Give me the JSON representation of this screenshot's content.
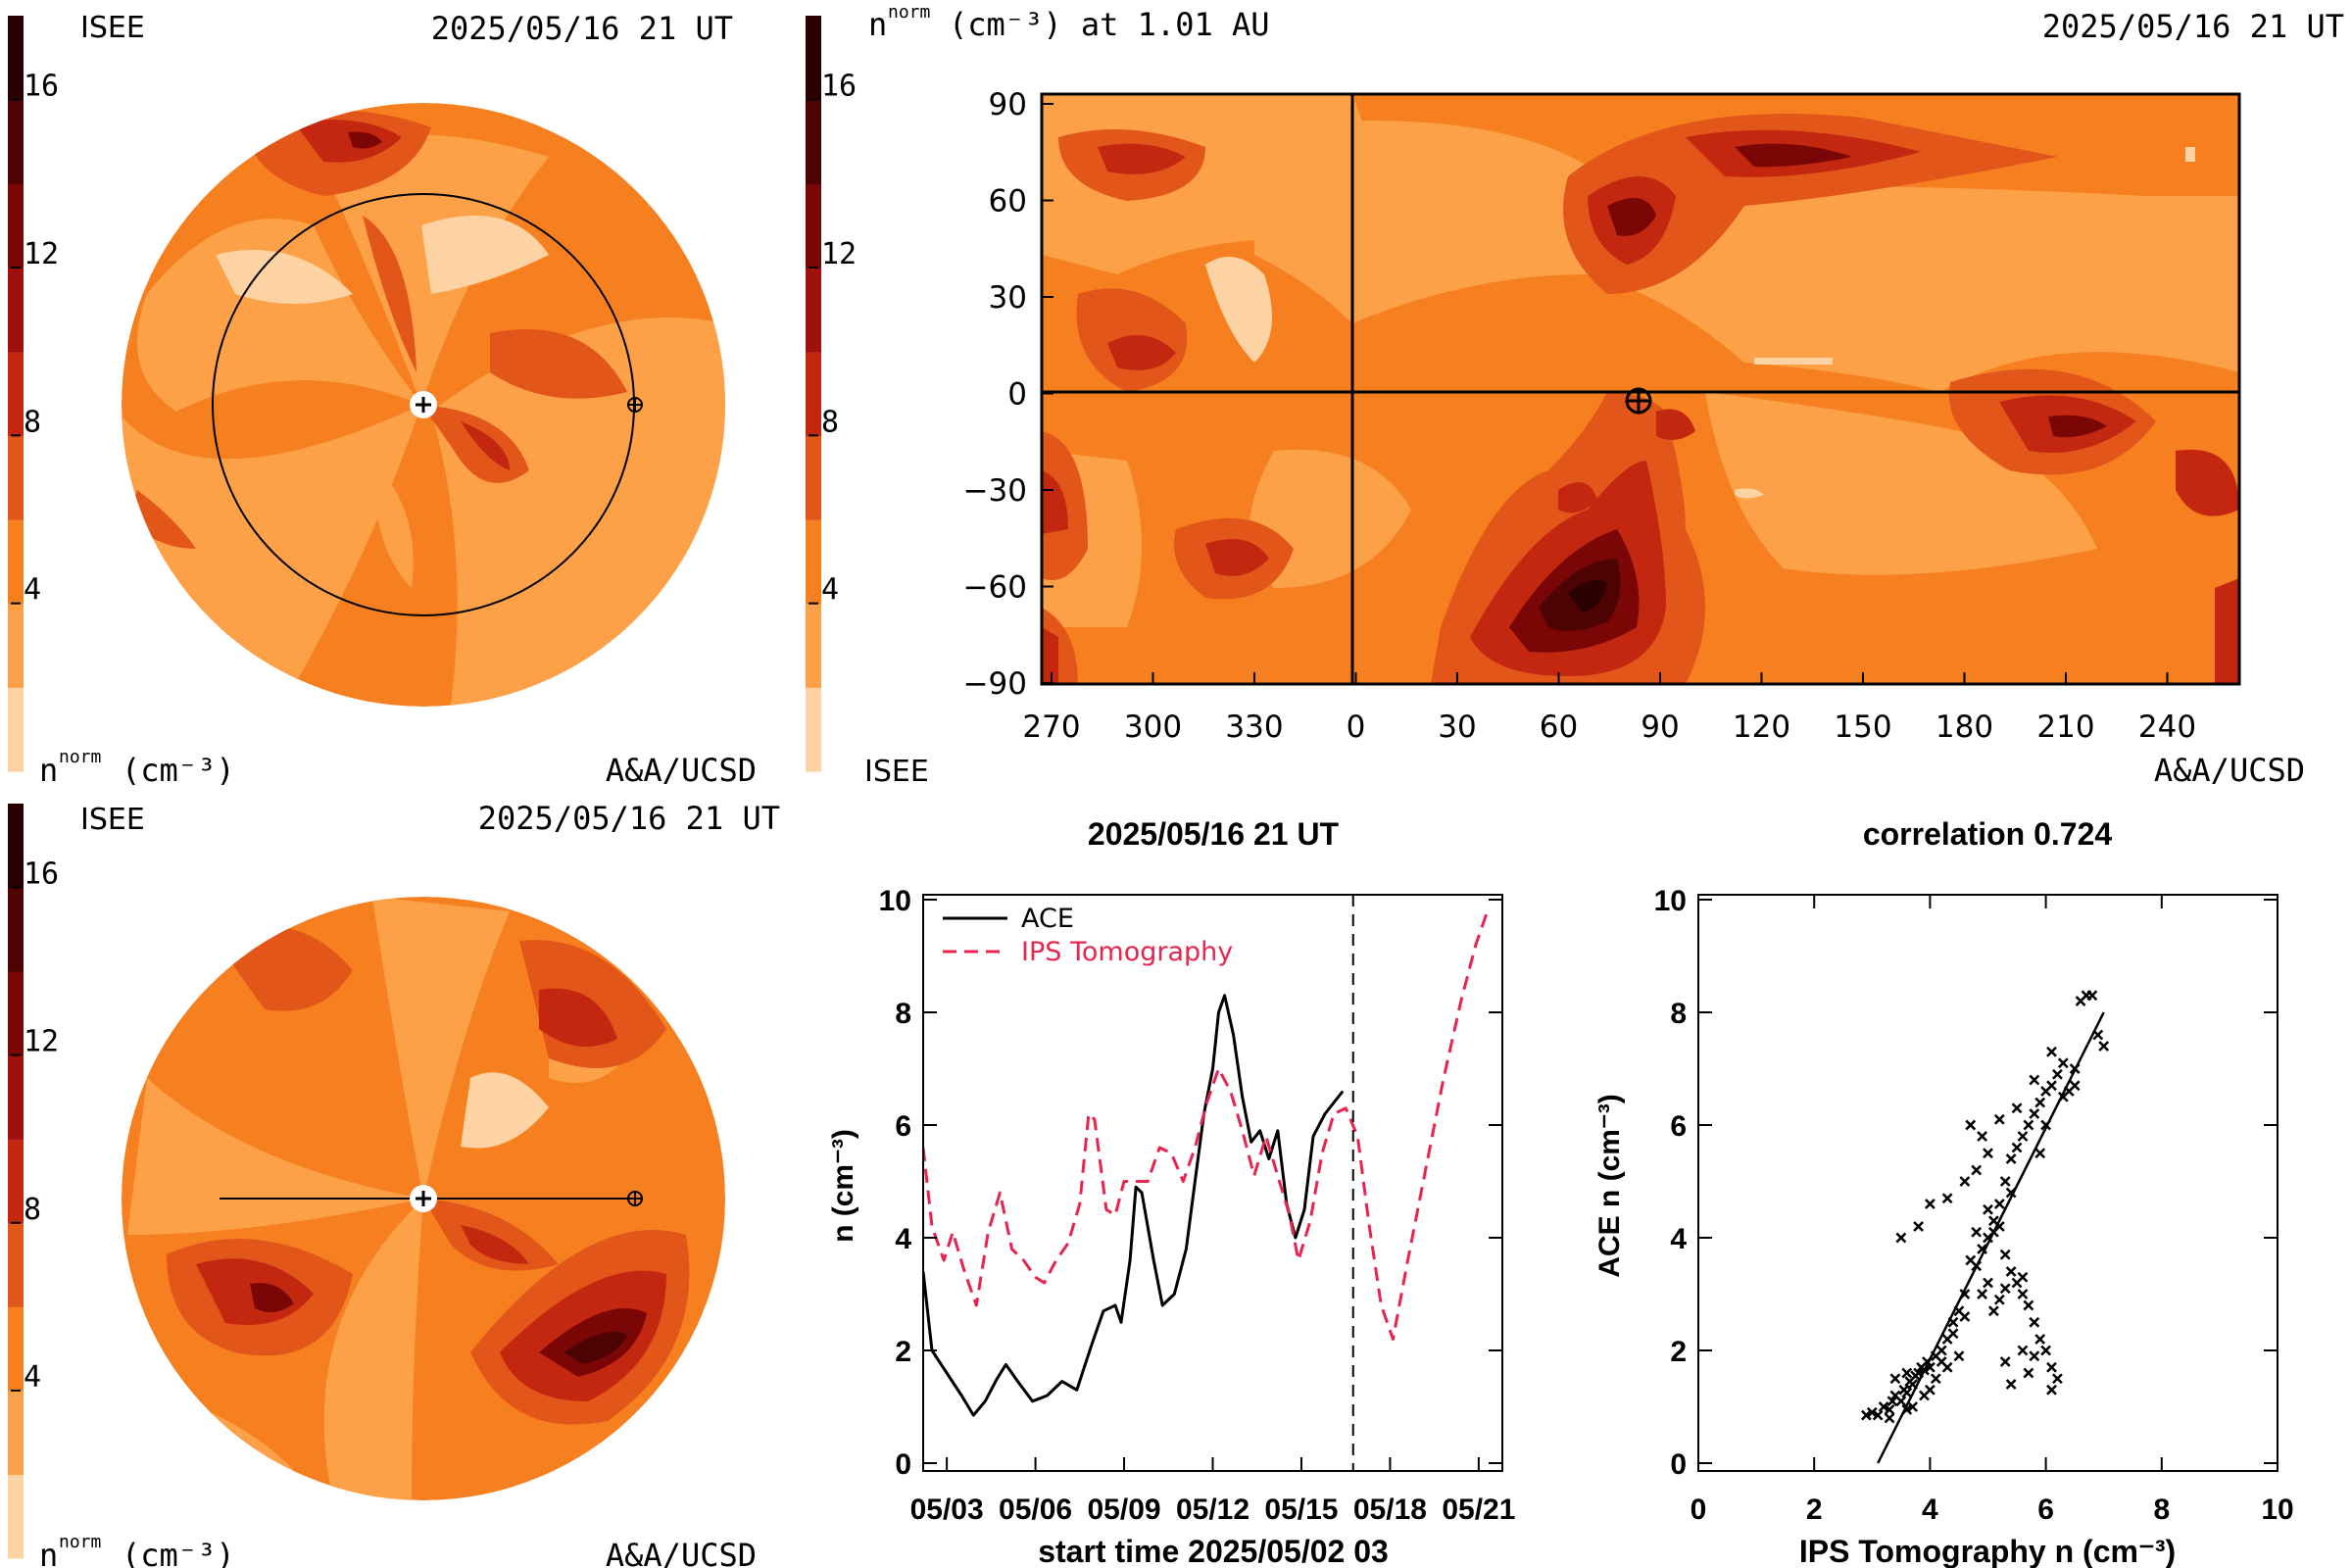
{
  "palette": [
    "#fdd3a4",
    "#fca148",
    "#f6801f",
    "#e2561a",
    "#c42710",
    "#a0100d",
    "#7a0706",
    "#4e0303",
    "#2a0000"
  ],
  "colorbar": {
    "ticks": [
      "4",
      "8",
      "12",
      "16"
    ],
    "unit_label": "(cm⁻³)",
    "n_label": "n",
    "n_sup": "norm"
  },
  "panel_topleft": {
    "source": "ISEE",
    "datetime": "2025/05/16 21 UT",
    "credit": "A&A/UCSD"
  },
  "panel_bottomleft": {
    "source": "ISEE",
    "datetime": "2025/05/16 21 UT",
    "credit": "A&A/UCSD"
  },
  "panel_map": {
    "title_n": "n",
    "title_sup": "norm",
    "title_rest": "(cm⁻³) at 1.01 AU",
    "datetime": "2025/05/16 21 UT",
    "source": "ISEE",
    "credit": "A&A/UCSD"
  },
  "chart_data": [
    {
      "type": "heatmap",
      "xticks": [
        "270",
        "300",
        "330",
        "0",
        "30",
        "60",
        "90",
        "120",
        "150",
        "180",
        "210",
        "240"
      ],
      "yticks": [
        "90",
        "60",
        "30",
        "0",
        "−30",
        "−60",
        "−90"
      ],
      "ylim": [
        -90,
        90
      ],
      "earth_marker": {
        "lon": 85,
        "lat": 0
      }
    },
    {
      "type": "line",
      "title": "2025/05/16 21 UT",
      "xlabel": "start time 2025/05/02 03",
      "ylabel": "n (cm⁻³)",
      "xticks": [
        "05/03",
        "05/06",
        "05/09",
        "05/12",
        "05/15",
        "05/18",
        "05/21"
      ],
      "xlim": [
        0.2,
        19.8
      ],
      "ylim": [
        0,
        10
      ],
      "yticks": [
        "0",
        "2",
        "4",
        "6",
        "8",
        "10"
      ],
      "current_time": 14.75,
      "series": [
        {
          "name": "ACE",
          "color": "#000000",
          "dash": "",
          "points": [
            [
              0.2,
              3.4
            ],
            [
              0.5,
              2.0
            ],
            [
              1,
              1.6
            ],
            [
              1.5,
              1.2
            ],
            [
              1.9,
              0.85
            ],
            [
              2.3,
              1.1
            ],
            [
              2.7,
              1.5
            ],
            [
              3,
              1.75
            ],
            [
              3.4,
              1.45
            ],
            [
              3.9,
              1.1
            ],
            [
              4.4,
              1.2
            ],
            [
              4.9,
              1.45
            ],
            [
              5.4,
              1.3
            ],
            [
              5.9,
              2.1
            ],
            [
              6.3,
              2.7
            ],
            [
              6.7,
              2.8
            ],
            [
              6.9,
              2.5
            ],
            [
              7.2,
              3.6
            ],
            [
              7.4,
              4.9
            ],
            [
              7.6,
              4.8
            ],
            [
              8,
              3.6
            ],
            [
              8.3,
              2.8
            ],
            [
              8.7,
              3.0
            ],
            [
              9.1,
              3.8
            ],
            [
              9.4,
              5.0
            ],
            [
              9.7,
              6.2
            ],
            [
              10,
              7.0
            ],
            [
              10.2,
              8.0
            ],
            [
              10.4,
              8.3
            ],
            [
              10.7,
              7.6
            ],
            [
              11,
              6.5
            ],
            [
              11.3,
              5.7
            ],
            [
              11.6,
              5.9
            ],
            [
              11.9,
              5.4
            ],
            [
              12.2,
              5.9
            ],
            [
              12.5,
              4.6
            ],
            [
              12.8,
              4.0
            ],
            [
              13.1,
              4.5
            ],
            [
              13.4,
              5.8
            ],
            [
              13.8,
              6.2
            ],
            [
              14.1,
              6.4
            ],
            [
              14.4,
              6.6
            ]
          ]
        },
        {
          "name": "IPS Tomography",
          "color": "#e8244f",
          "dash": "14,8",
          "points": [
            [
              0.2,
              5.6
            ],
            [
              0.5,
              4.2
            ],
            [
              0.9,
              3.6
            ],
            [
              1.2,
              4.1
            ],
            [
              1.6,
              3.4
            ],
            [
              2,
              2.8
            ],
            [
              2.4,
              4.1
            ],
            [
              2.8,
              4.8
            ],
            [
              3.2,
              3.8
            ],
            [
              3.6,
              3.6
            ],
            [
              4,
              3.3
            ],
            [
              4.3,
              3.2
            ],
            [
              4.7,
              3.6
            ],
            [
              5.1,
              3.9
            ],
            [
              5.5,
              4.6
            ],
            [
              5.8,
              6.2
            ],
            [
              6,
              6.1
            ],
            [
              6.4,
              4.5
            ],
            [
              6.7,
              4.4
            ],
            [
              7,
              5.0
            ],
            [
              7.4,
              5.0
            ],
            [
              7.8,
              5.0
            ],
            [
              8.2,
              5.6
            ],
            [
              8.6,
              5.5
            ],
            [
              9,
              5.0
            ],
            [
              9.4,
              5.6
            ],
            [
              9.8,
              6.4
            ],
            [
              10.2,
              7.0
            ],
            [
              10.6,
              6.6
            ],
            [
              11,
              5.9
            ],
            [
              11.4,
              5.1
            ],
            [
              11.8,
              5.8
            ],
            [
              12.2,
              5.1
            ],
            [
              12.6,
              4.4
            ],
            [
              12.9,
              3.6
            ],
            [
              13.3,
              4.3
            ],
            [
              13.7,
              5.5
            ],
            [
              14.1,
              6.2
            ],
            [
              14.5,
              6.3
            ],
            [
              14.9,
              5.8
            ],
            [
              15.3,
              4.2
            ],
            [
              15.7,
              2.8
            ],
            [
              16.1,
              2.2
            ],
            [
              16.6,
              3.6
            ],
            [
              17.2,
              5.2
            ],
            [
              17.8,
              6.8
            ],
            [
              18.4,
              8.2
            ],
            [
              18.9,
              9.2
            ],
            [
              19.3,
              9.8
            ]
          ]
        }
      ]
    },
    {
      "type": "scatter",
      "title": "correlation 0.724",
      "xlabel": "IPS Tomography n (cm⁻³)",
      "ylabel": "ACE n (cm⁻³)",
      "xlim": [
        0,
        10
      ],
      "ylim": [
        0,
        10
      ],
      "xticks": [
        "0",
        "2",
        "4",
        "6",
        "8",
        "10"
      ],
      "yticks": [
        "0",
        "2",
        "4",
        "6",
        "8",
        "10"
      ],
      "fit": [
        [
          3.1,
          0
        ],
        [
          7.0,
          8.0
        ]
      ],
      "points": [
        [
          2.9,
          0.85
        ],
        [
          3.0,
          0.9
        ],
        [
          3.1,
          0.85
        ],
        [
          3.2,
          1.0
        ],
        [
          3.3,
          0.95
        ],
        [
          3.35,
          1.1
        ],
        [
          3.4,
          1.2
        ],
        [
          3.5,
          1.1
        ],
        [
          3.55,
          1.3
        ],
        [
          3.6,
          1.25
        ],
        [
          3.65,
          1.45
        ],
        [
          3.7,
          1.4
        ],
        [
          3.75,
          1.55
        ],
        [
          3.8,
          1.6
        ],
        [
          3.85,
          1.7
        ],
        [
          3.9,
          1.65
        ],
        [
          3.95,
          1.8
        ],
        [
          4.0,
          1.7
        ],
        [
          4.1,
          1.9
        ],
        [
          3.4,
          1.5
        ],
        [
          3.6,
          1.6
        ],
        [
          4.2,
          2.0
        ],
        [
          4.3,
          2.2
        ],
        [
          4.4,
          2.5
        ],
        [
          4.5,
          2.7
        ],
        [
          4.6,
          3.0
        ],
        [
          4.8,
          3.5
        ],
        [
          4.9,
          3.8
        ],
        [
          5.0,
          4.0
        ],
        [
          5.1,
          4.3
        ],
        [
          5.2,
          4.6
        ],
        [
          5.3,
          5.0
        ],
        [
          5.4,
          5.4
        ],
        [
          5.5,
          5.6
        ],
        [
          5.6,
          5.8
        ],
        [
          5.7,
          6.0
        ],
        [
          5.8,
          6.2
        ],
        [
          5.9,
          6.4
        ],
        [
          6.0,
          6.6
        ],
        [
          6.1,
          6.7
        ],
        [
          6.2,
          6.9
        ],
        [
          6.3,
          7.1
        ],
        [
          6.4,
          6.6
        ],
        [
          6.5,
          7.0
        ],
        [
          6.6,
          8.2
        ],
        [
          6.7,
          8.3
        ],
        [
          6.8,
          8.3
        ],
        [
          6.9,
          7.6
        ],
        [
          7.0,
          7.4
        ],
        [
          3.5,
          4.0
        ],
        [
          3.8,
          4.2
        ],
        [
          4.0,
          4.6
        ],
        [
          4.3,
          4.7
        ],
        [
          4.6,
          5.0
        ],
        [
          4.8,
          5.2
        ],
        [
          5.0,
          5.5
        ],
        [
          4.9,
          5.8
        ],
        [
          5.2,
          6.1
        ],
        [
          5.5,
          6.3
        ],
        [
          4.7,
          6.0
        ],
        [
          5.0,
          4.5
        ],
        [
          5.1,
          4.1
        ],
        [
          5.3,
          3.7
        ],
        [
          5.4,
          3.4
        ],
        [
          5.5,
          3.2
        ],
        [
          5.6,
          3.0
        ],
        [
          5.7,
          2.8
        ],
        [
          5.8,
          2.5
        ],
        [
          5.9,
          2.2
        ],
        [
          5.8,
          1.9
        ],
        [
          5.7,
          1.6
        ],
        [
          5.4,
          1.4
        ],
        [
          6.1,
          1.3
        ],
        [
          6.2,
          1.5
        ],
        [
          6.1,
          1.7
        ],
        [
          5.0,
          3.2
        ],
        [
          4.9,
          3.0
        ],
        [
          5.2,
          2.9
        ],
        [
          5.6,
          2.0
        ],
        [
          5.3,
          1.8
        ],
        [
          4.5,
          1.9
        ],
        [
          4.3,
          1.7
        ],
        [
          4.1,
          1.5
        ],
        [
          4.0,
          1.3
        ],
        [
          3.9,
          1.2
        ],
        [
          6.0,
          6.0
        ],
        [
          6.3,
          6.5
        ],
        [
          6.5,
          6.7
        ],
        [
          5.9,
          5.5
        ],
        [
          5.4,
          4.8
        ],
        [
          5.2,
          4.2
        ],
        [
          4.7,
          3.6
        ],
        [
          4.6,
          2.6
        ],
        [
          4.4,
          2.3
        ],
        [
          4.2,
          1.8
        ],
        [
          3.7,
          1.0
        ],
        [
          3.3,
          0.8
        ],
        [
          5.6,
          3.3
        ],
        [
          5.3,
          3.1
        ],
        [
          5.1,
          2.7
        ],
        [
          6.0,
          2.0
        ],
        [
          4.8,
          4.1
        ],
        [
          5.8,
          6.8
        ],
        [
          6.1,
          7.3
        ],
        [
          3.6,
          0.95
        ]
      ]
    }
  ]
}
